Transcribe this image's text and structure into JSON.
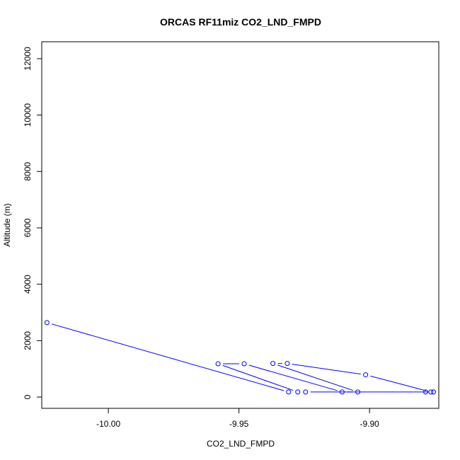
{
  "chart_data": {
    "type": "line",
    "title": "ORCAS RF11miz CO2_LND_FMPD",
    "xlabel": "CO2_LND_FMPD",
    "ylabel": "Altitude (m)",
    "xlim": [
      -10.0255,
      -9.8735
    ],
    "ylim": [
      -400,
      12600
    ],
    "x_ticks": [
      -10.0,
      -9.95,
      -9.9
    ],
    "x_tick_labels": [
      "-10.00",
      "-9.95",
      "-9.90"
    ],
    "y_ticks": [
      0,
      2000,
      4000,
      6000,
      8000,
      10000,
      12000
    ],
    "y_tick_labels": [
      "0",
      "2000",
      "4000",
      "6000",
      "8000",
      "10000",
      "12000"
    ],
    "grid": false,
    "series": [
      {
        "color": "#0000ff",
        "marker": "open-circle",
        "points": [
          {
            "x": -10.0235,
            "y": 2640
          },
          {
            "x": -9.931,
            "y": 180
          },
          {
            "x": -9.9275,
            "y": 180
          },
          {
            "x": -9.958,
            "y": 1180
          },
          {
            "x": -9.948,
            "y": 1180
          },
          {
            "x": -9.9105,
            "y": 180
          },
          {
            "x": -9.9045,
            "y": 180
          },
          {
            "x": -9.937,
            "y": 1190
          },
          {
            "x": -9.9315,
            "y": 1190
          },
          {
            "x": -9.9015,
            "y": 790
          },
          {
            "x": -9.8765,
            "y": 180
          },
          {
            "x": -9.8785,
            "y": 180
          },
          {
            "x": -9.8755,
            "y": 180
          },
          {
            "x": -9.9245,
            "y": 180
          }
        ]
      }
    ]
  }
}
